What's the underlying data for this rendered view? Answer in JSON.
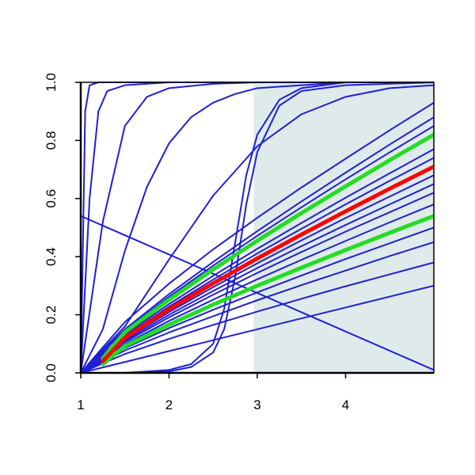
{
  "chart_data": {
    "type": "line",
    "xlim": [
      1,
      5
    ],
    "ylim": [
      0,
      1
    ],
    "xticks": [
      1,
      2,
      3,
      4
    ],
    "yticks": [
      {
        "value": 0,
        "label": "0.0"
      },
      0.2,
      0.4,
      0.6,
      0.8,
      {
        "value": 1,
        "label": "1.0"
      }
    ],
    "shaded_region": {
      "x": [
        2.96,
        5
      ],
      "color": "#dfeaea"
    },
    "series": [
      {
        "color": "#1f1fd6",
        "line_width": 2,
        "x": [
          1,
          1.05,
          1.1,
          1.2,
          1.5,
          5
        ],
        "values": [
          0,
          0.9,
          0.99,
          1,
          1,
          1
        ]
      },
      {
        "color": "#1f1fd6",
        "line_width": 2,
        "x": [
          1,
          1.1,
          1.2,
          1.3,
          1.5,
          2,
          5
        ],
        "values": [
          0,
          0.6,
          0.9,
          0.97,
          0.99,
          1,
          1
        ]
      },
      {
        "color": "#1f1fd6",
        "line_width": 2,
        "x": [
          1,
          1.25,
          1.5,
          1.75,
          2,
          2.5,
          3,
          5
        ],
        "values": [
          0,
          0.52,
          0.85,
          0.95,
          0.98,
          0.995,
          1,
          1
        ]
      },
      {
        "color": "#1f1fd6",
        "line_width": 2,
        "x": [
          1,
          1.25,
          1.5,
          1.75,
          2,
          2.25,
          2.5,
          2.75,
          3,
          3.5,
          4,
          5
        ],
        "values": [
          0,
          0.15,
          0.42,
          0.64,
          0.79,
          0.88,
          0.93,
          0.96,
          0.98,
          0.99,
          1,
          1
        ]
      },
      {
        "color": "#1f1fd6",
        "line_width": 2,
        "x": [
          1,
          1.5,
          2,
          2.5,
          3,
          3.5,
          4,
          4.5,
          5
        ],
        "values": [
          0,
          0.16,
          0.39,
          0.61,
          0.78,
          0.89,
          0.95,
          0.98,
          0.99
        ]
      },
      {
        "color": "#1f1fd6",
        "line_width": 2,
        "x": [
          1,
          1.5,
          2,
          2.25,
          2.5,
          2.625,
          2.75,
          2.875,
          3,
          3.25,
          3.5,
          4,
          5
        ],
        "values": [
          0,
          0,
          0.01,
          0.03,
          0.1,
          0.22,
          0.45,
          0.68,
          0.82,
          0.94,
          0.98,
          1,
          1
        ]
      },
      {
        "color": "#1f1fd6",
        "line_width": 2,
        "x": [
          1,
          1.5,
          2,
          2.25,
          2.5,
          2.625,
          2.75,
          2.875,
          3,
          3.25,
          3.5,
          4,
          5
        ],
        "values": [
          0,
          0,
          0.005,
          0.02,
          0.07,
          0.15,
          0.33,
          0.58,
          0.76,
          0.92,
          0.97,
          0.99,
          1
        ]
      },
      {
        "color": "#1f1fd6",
        "line_width": 2,
        "x": [
          1,
          5
        ],
        "values": [
          0.54,
          0.01
        ]
      },
      {
        "color": "#1f1fd6",
        "line_width": 2,
        "x": [
          1,
          1.5,
          2,
          2.5,
          3,
          3.5,
          4,
          4.5,
          5
        ],
        "values": [
          0,
          0.0375,
          0.075,
          0.1125,
          0.15,
          0.1875,
          0.225,
          0.2625,
          0.3
        ]
      },
      {
        "color": "#1f1fd6",
        "line_width": 2,
        "x": [
          1,
          1.5,
          2,
          2.5,
          3,
          3.5,
          4,
          4.5,
          5
        ],
        "values": [
          0,
          0.175,
          0.307,
          0.425,
          0.534,
          0.638,
          0.737,
          0.835,
          0.93
        ]
      },
      {
        "color": "#1f1fd6",
        "line_width": 2,
        "x": [
          1,
          1.5,
          2,
          2.5,
          3,
          3.5,
          4,
          4.5,
          5
        ],
        "values": [
          0,
          0.065,
          0.117,
          0.165,
          0.211,
          0.255,
          0.298,
          0.339,
          0.38
        ]
      },
      {
        "color": "#1f1fd6",
        "line_width": 2,
        "x": [
          1,
          1.5,
          2,
          2.5,
          3,
          3.5,
          4,
          4.5,
          5
        ],
        "values": [
          0,
          0.077,
          0.139,
          0.195,
          0.25,
          0.302,
          0.352,
          0.402,
          0.45
        ]
      },
      {
        "color": "#1f1fd6",
        "line_width": 2,
        "x": [
          1,
          1.5,
          2,
          2.5,
          3,
          3.5,
          4,
          4.5,
          5
        ],
        "values": [
          0,
          0.085,
          0.154,
          0.217,
          0.277,
          0.335,
          0.392,
          0.446,
          0.5
        ]
      },
      {
        "color": "#1f1fd6",
        "line_width": 2,
        "x": [
          1,
          1.5,
          2,
          2.5,
          3,
          3.5,
          4,
          4.5,
          5
        ],
        "values": [
          0,
          0.099,
          0.179,
          0.252,
          0.322,
          0.389,
          0.454,
          0.518,
          0.58
        ]
      },
      {
        "color": "#1f1fd6",
        "line_width": 2,
        "x": [
          1,
          1.5,
          2,
          2.5,
          3,
          3.5,
          4,
          4.5,
          5
        ],
        "values": [
          0,
          0.106,
          0.191,
          0.269,
          0.344,
          0.416,
          0.486,
          0.553,
          0.62
        ]
      },
      {
        "color": "#1f1fd6",
        "line_width": 2,
        "x": [
          1,
          1.5,
          2,
          2.5,
          3,
          3.5,
          4,
          4.5,
          5
        ],
        "values": [
          0,
          0.111,
          0.2,
          0.282,
          0.361,
          0.436,
          0.509,
          0.58,
          0.65
        ]
      },
      {
        "color": "#1f1fd6",
        "line_width": 2,
        "x": [
          1,
          1.5,
          2,
          2.5,
          3,
          3.5,
          4,
          4.5,
          5
        ],
        "values": [
          0,
          0.116,
          0.209,
          0.295,
          0.377,
          0.456,
          0.533,
          0.607,
          0.68
        ]
      },
      {
        "color": "#1f1fd6",
        "line_width": 2,
        "x": [
          1,
          1.5,
          2,
          2.5,
          3,
          3.5,
          4,
          4.5,
          5
        ],
        "values": [
          0,
          0.126,
          0.228,
          0.321,
          0.411,
          0.496,
          0.58,
          0.661,
          0.74
        ]
      },
      {
        "color": "#1f1fd6",
        "line_width": 2,
        "x": [
          1,
          1.5,
          2,
          2.5,
          3,
          3.5,
          4,
          4.5,
          5
        ],
        "values": [
          0,
          0.132,
          0.237,
          0.334,
          0.427,
          0.516,
          0.603,
          0.687,
          0.77
        ]
      },
      {
        "color": "#1f1fd6",
        "line_width": 2,
        "x": [
          1,
          1.5,
          2,
          2.5,
          3,
          3.5,
          4,
          4.5,
          5
        ],
        "values": [
          0,
          0.145,
          0.262,
          0.369,
          0.472,
          0.57,
          0.666,
          0.759,
          0.85
        ]
      },
      {
        "color": "#1f1fd6",
        "line_width": 2,
        "x": [
          1,
          1.5,
          2,
          2.5,
          3,
          3.5,
          4,
          4.5,
          5
        ],
        "values": [
          0,
          0.15,
          0.271,
          0.382,
          0.488,
          0.59,
          0.689,
          0.786,
          0.88
        ]
      },
      {
        "color": "#22dd22",
        "line_width": 5,
        "x": [
          1.25,
          1.5,
          2,
          2.5,
          3,
          3.5,
          4,
          4.5,
          5
        ],
        "values": [
          0.05,
          0.14,
          0.252,
          0.356,
          0.455,
          0.55,
          0.642,
          0.732,
          0.82
        ]
      },
      {
        "color": "#22dd22",
        "line_width": 5,
        "x": [
          1.25,
          1.5,
          2,
          2.5,
          3,
          3.5,
          4,
          4.5,
          5
        ],
        "values": [
          0.03,
          0.092,
          0.166,
          0.235,
          0.3,
          0.362,
          0.423,
          0.482,
          0.54
        ]
      },
      {
        "color": "#ff0000",
        "line_width": 5,
        "x": [
          1.25,
          1.5,
          2,
          2.5,
          3,
          3.5,
          4,
          4.5,
          5
        ],
        "values": [
          0.04,
          0.121,
          0.219,
          0.308,
          0.394,
          0.476,
          0.556,
          0.634,
          0.71
        ]
      }
    ]
  }
}
